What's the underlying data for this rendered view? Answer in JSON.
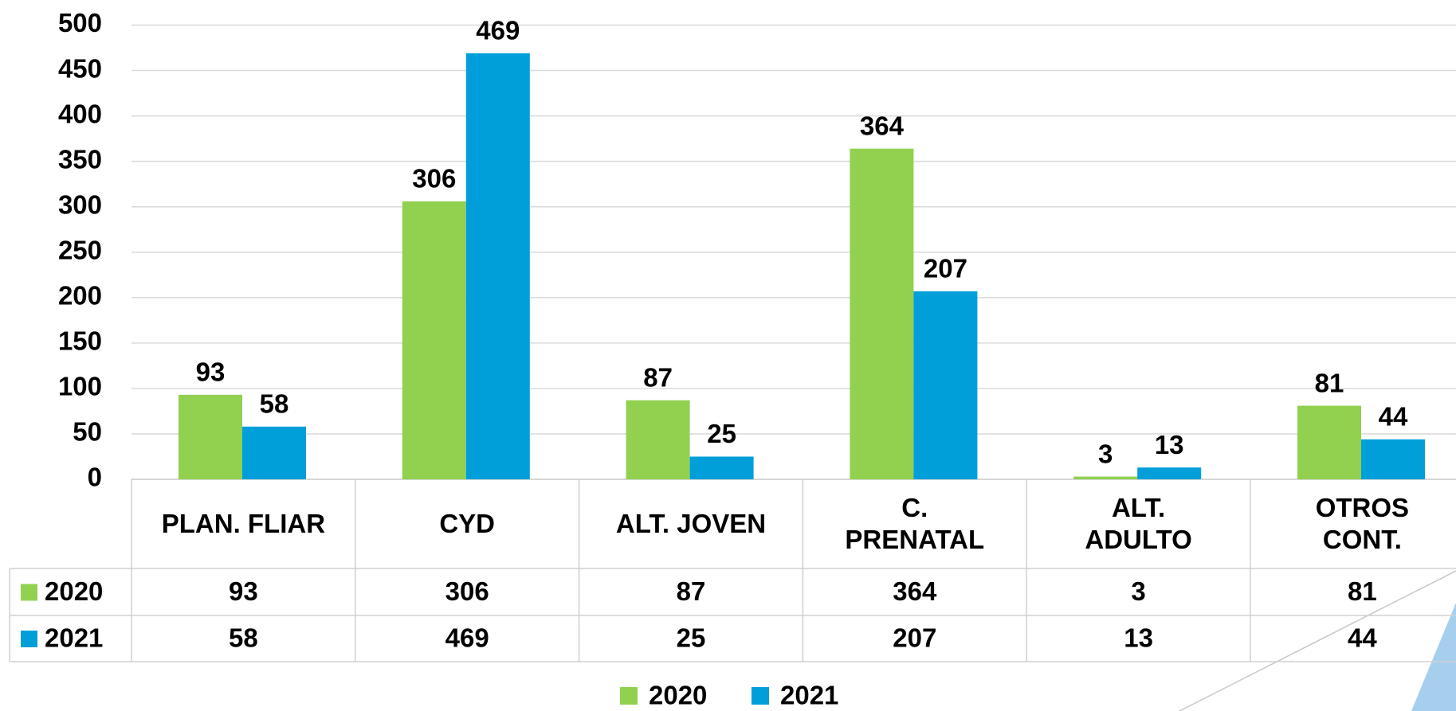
{
  "chart_data": {
    "type": "bar",
    "categories": [
      "PLAN. FLIAR",
      "CYD",
      "ALT. JOVEN",
      "C.\nPRENATAL",
      "ALT.\nADULTO",
      "OTROS\nCONT."
    ],
    "series": [
      {
        "name": "2020",
        "color": "#92d050",
        "values": [
          93,
          306,
          87,
          364,
          3,
          81
        ]
      },
      {
        "name": "2021",
        "color": "#009fda",
        "values": [
          58,
          469,
          25,
          207,
          13,
          44
        ]
      }
    ],
    "ylim": [
      0,
      500
    ],
    "yticks": [
      0,
      50,
      100,
      150,
      200,
      250,
      300,
      350,
      400,
      450,
      500
    ],
    "grid": true,
    "legend": "bottom",
    "data_table": true
  }
}
